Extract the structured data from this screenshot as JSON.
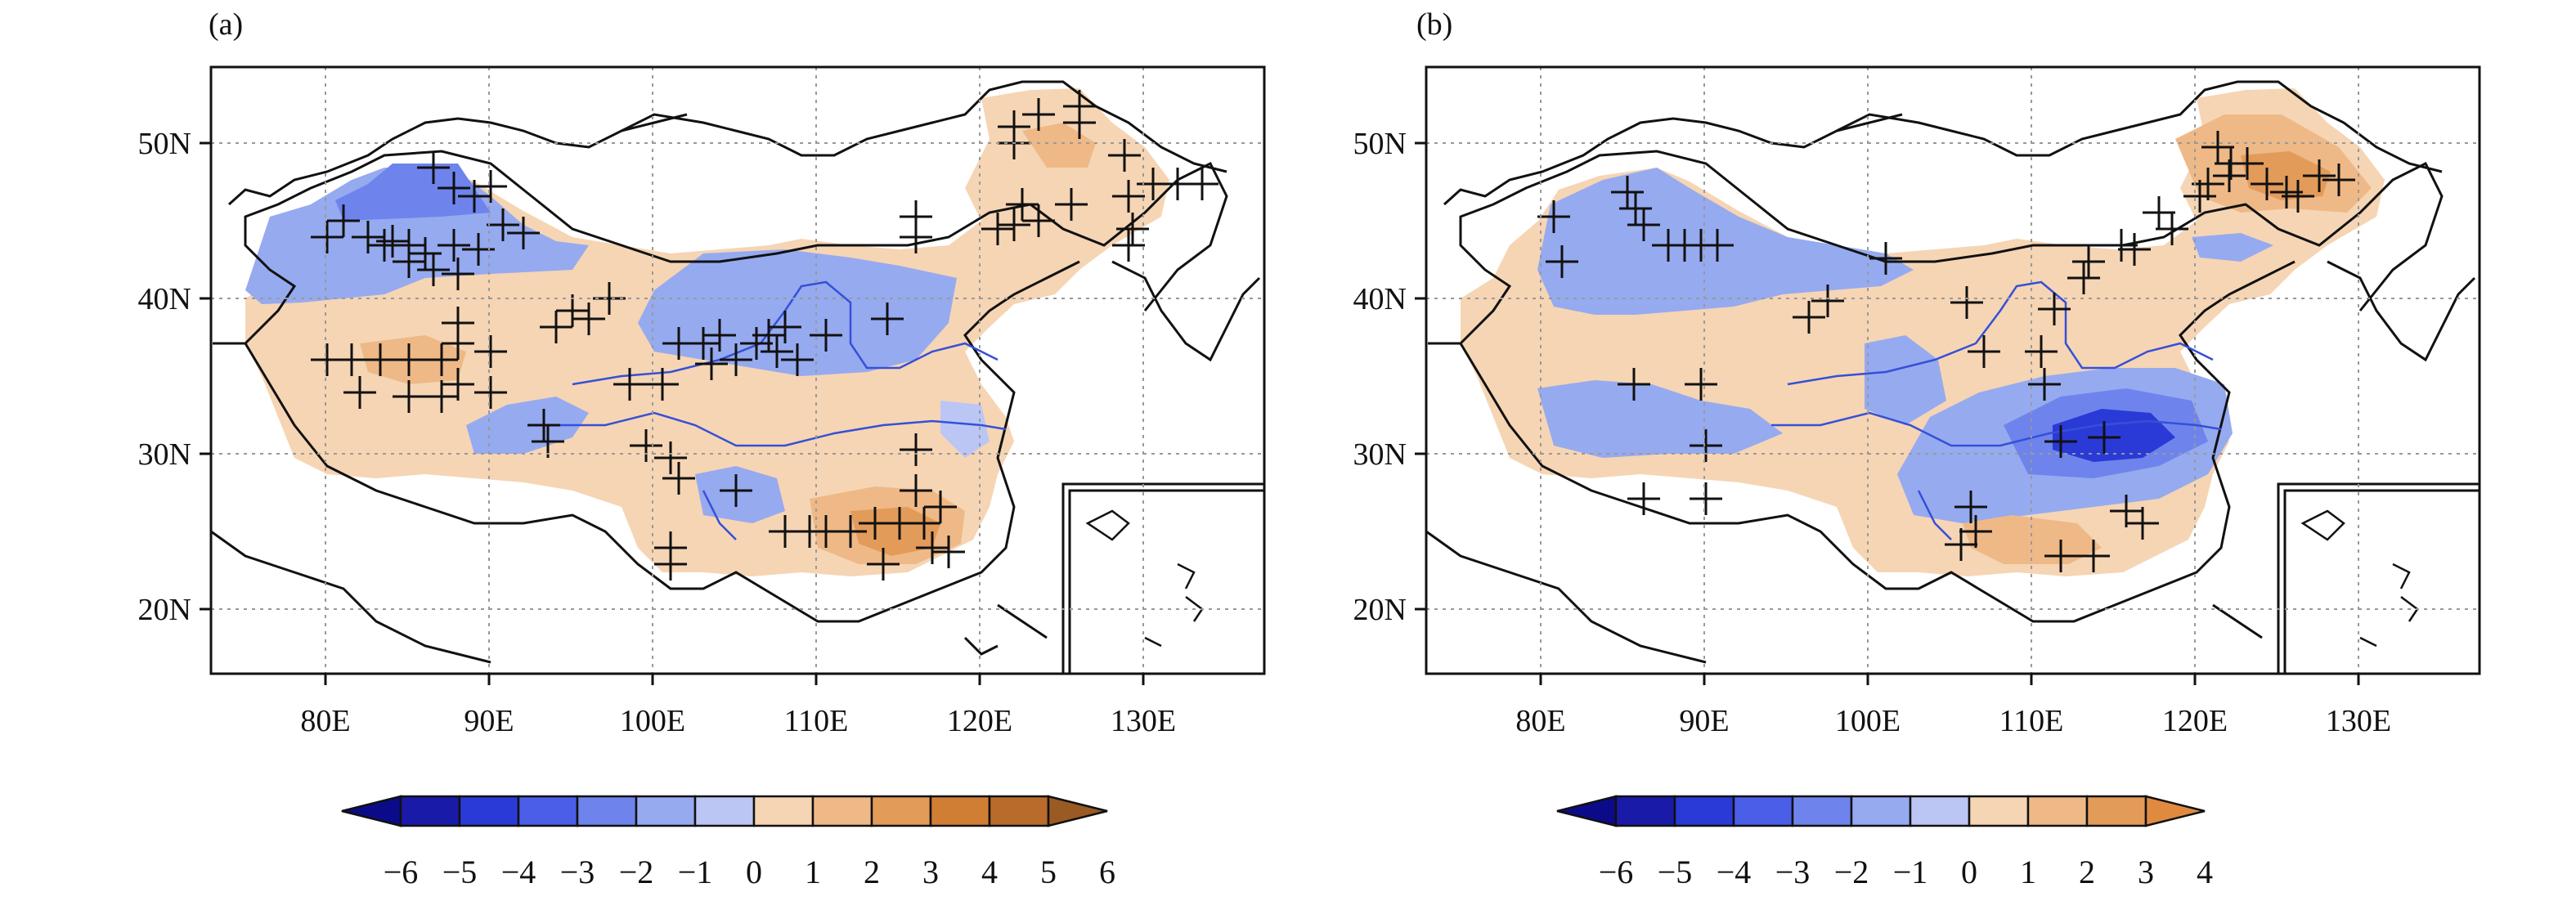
{
  "panels": [
    {
      "label": "(a)",
      "lat_labels": [
        "50N",
        "40N",
        "30N",
        "20N"
      ],
      "lon_labels": [
        "80E",
        "90E",
        "100E",
        "110E",
        "120E",
        "130E"
      ],
      "colorbar": {
        "labels": [
          "−6",
          "−5",
          "−4",
          "−3",
          "−2",
          "−1",
          "0",
          "1",
          "2",
          "3",
          "4",
          "5",
          "6"
        ],
        "colors": [
          "#1a1aa8",
          "#2a3ad6",
          "#4a5ee8",
          "#6e84ec",
          "#96aaf0",
          "#bcc6f5",
          "#f6d5b4",
          "#eeb987",
          "#e39b5a",
          "#d07e33",
          "#b86b2a"
        ],
        "arrow_low": "#0b0b8a",
        "arrow_high": "#9a5a24"
      },
      "regions": [
        {
          "type": "positive",
          "color": "#f6d5b4"
        },
        {
          "type": "negative",
          "color": "#96aaf0"
        },
        {
          "type": "strong-positive",
          "color": "#e39b5a"
        }
      ]
    },
    {
      "label": "(b)",
      "lat_labels": [
        "50N",
        "40N",
        "30N",
        "20N"
      ],
      "lon_labels": [
        "80E",
        "90E",
        "100E",
        "110E",
        "120E",
        "130E"
      ],
      "colorbar": {
        "labels": [
          "−6",
          "−5",
          "−4",
          "−3",
          "−2",
          "−1",
          "0",
          "1",
          "2",
          "3",
          "4"
        ],
        "colors": [
          "#1a1aa8",
          "#2a3ad6",
          "#4a5ee8",
          "#6e84ec",
          "#96aaf0",
          "#bcc6f5",
          "#f6d5b4",
          "#eeb987",
          "#e39b5a"
        ],
        "arrow_low": "#0b0b8a",
        "arrow_high": "#e08a40"
      },
      "regions": [
        {
          "type": "positive",
          "color": "#f6d5b4"
        },
        {
          "type": "negative",
          "color": "#96aaf0"
        },
        {
          "type": "strong-negative",
          "color": "#2a3ad6"
        }
      ]
    }
  ]
}
